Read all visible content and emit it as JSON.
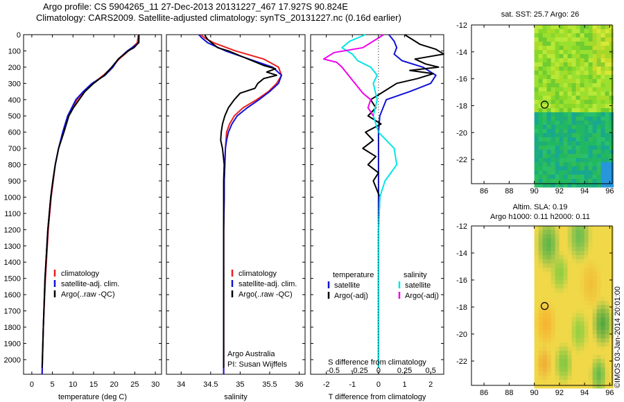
{
  "header": {
    "line1": "Argo profile: CS 5904265_11 27-Dec-2013 20131227_467 17.927S 90.824E",
    "line2": "Climatology: CARS2009. Satellite-adjusted climatology: synTS_20131227.nc (0.16d earlier)"
  },
  "colors": {
    "climatology": "#ee1c1c",
    "satellite": "#1010d8",
    "argo": "#000000",
    "sal_satellite": "#00e5e5",
    "sal_argo": "#ee00ee"
  },
  "depth_axis": {
    "ticks": [
      0,
      100,
      200,
      300,
      400,
      500,
      600,
      700,
      800,
      900,
      1000,
      1100,
      1200,
      1300,
      1400,
      1500,
      1600,
      1700,
      1800,
      1900,
      2000
    ],
    "ylim": [
      0,
      2090
    ],
    "reversed": true
  },
  "chart_data": [
    {
      "type": "line",
      "id": "temperature",
      "xlabel": "temperature (deg C)",
      "xlim": [
        -2,
        31.5
      ],
      "xticks": [
        0,
        5,
        10,
        15,
        20,
        25,
        30
      ],
      "legend": {
        "entries": [
          "climatology",
          "satellite-adj. clim.",
          "Argo(..raw -QC)"
        ]
      },
      "series": [
        {
          "name": "climatology",
          "color": "#ee1c1c",
          "depth": [
            0,
            50,
            100,
            150,
            200,
            250,
            300,
            350,
            400,
            450,
            500,
            600,
            700,
            800,
            900,
            1000,
            1200,
            1500,
            1800,
            2090
          ],
          "values": [
            25.9,
            25.6,
            23.5,
            21.2,
            19.5,
            17.4,
            14.8,
            12.6,
            11.0,
            9.8,
            8.8,
            7.6,
            6.5,
            5.7,
            5.2,
            4.7,
            4.0,
            3.3,
            2.8,
            2.5
          ]
        },
        {
          "name": "satellite-adj. clim.",
          "color": "#1010d8",
          "depth": [
            0,
            50,
            100,
            150,
            200,
            250,
            300,
            350,
            400,
            450,
            500,
            600,
            700,
            800,
            900,
            1000,
            1200,
            1500,
            1800,
            2090
          ],
          "values": [
            26.0,
            26.0,
            23.2,
            21.0,
            19.7,
            17.8,
            14.6,
            12.5,
            10.7,
            9.7,
            8.7,
            7.5,
            6.5,
            5.7,
            5.1,
            4.6,
            3.9,
            3.2,
            2.8,
            2.5
          ]
        },
        {
          "name": "Argo(..raw -QC)",
          "color": "#000000",
          "depth": [
            2,
            20,
            50,
            80,
            100,
            150,
            200,
            250,
            300,
            350,
            400,
            450,
            500,
            600,
            700,
            800,
            900,
            1000,
            1200,
            1500,
            1800,
            2050
          ],
          "values": [
            26.0,
            26.0,
            25.9,
            24.8,
            23.4,
            21.0,
            19.4,
            17.6,
            15.0,
            12.9,
            11.5,
            10.1,
            9.0,
            7.8,
            6.5,
            5.7,
            5.1,
            4.6,
            3.9,
            3.2,
            2.8,
            2.5
          ]
        }
      ]
    },
    {
      "type": "line",
      "id": "salinity",
      "xlabel": "salinity",
      "xlim": [
        33.75,
        36.1
      ],
      "xticks": [
        34,
        34.5,
        35,
        35.5,
        36
      ],
      "legend": {
        "entries": [
          "climatology",
          "satellite-adj. clim.",
          "Argo(..raw -QC)"
        ]
      },
      "annotations": [
        "Argo Australia",
        "PI: Susan Wijffels"
      ],
      "series": [
        {
          "name": "climatology",
          "color": "#ee1c1c",
          "depth": [
            0,
            20,
            50,
            100,
            150,
            200,
            250,
            300,
            350,
            400,
            450,
            500,
            550,
            600,
            650,
            700,
            800,
            900,
            1000,
            1200,
            1500,
            1800,
            2090
          ],
          "values": [
            34.33,
            34.4,
            34.55,
            34.92,
            35.4,
            35.65,
            35.7,
            35.62,
            35.48,
            35.28,
            35.05,
            34.9,
            34.82,
            34.77,
            34.76,
            34.75,
            34.74,
            34.73,
            34.73,
            34.72,
            34.72,
            34.72,
            34.72
          ]
        },
        {
          "name": "satellite-adj. clim.",
          "color": "#1010d8",
          "depth": [
            0,
            20,
            50,
            100,
            150,
            200,
            250,
            300,
            350,
            400,
            450,
            500,
            550,
            600,
            650,
            700,
            800,
            900,
            1000,
            1200,
            1500,
            1800,
            2090
          ],
          "values": [
            34.3,
            34.35,
            34.45,
            34.75,
            35.15,
            35.55,
            35.7,
            35.65,
            35.5,
            35.32,
            35.12,
            34.95,
            34.86,
            34.8,
            34.77,
            34.75,
            34.74,
            34.73,
            34.73,
            34.72,
            34.72,
            34.72,
            34.72
          ]
        },
        {
          "name": "Argo(..raw -QC)",
          "color": "#000000",
          "depth": [
            2,
            30,
            60,
            80,
            100,
            130,
            160,
            190,
            210,
            230,
            250,
            270,
            300,
            330,
            360,
            400,
            450,
            500,
            550,
            600,
            650,
            700,
            800,
            900,
            1000,
            1200,
            1500,
            1800,
            2050
          ],
          "values": [
            34.4,
            34.45,
            34.55,
            34.62,
            34.8,
            35.0,
            35.2,
            35.4,
            35.6,
            35.45,
            35.62,
            35.4,
            35.3,
            35.25,
            35.0,
            34.9,
            34.8,
            34.74,
            34.7,
            34.68,
            34.67,
            34.7,
            34.73,
            34.72,
            34.72,
            34.72,
            34.72,
            34.72,
            34.72
          ]
        }
      ]
    },
    {
      "type": "line",
      "id": "difference",
      "xlabel": "T difference from climatology",
      "xlabel_top": "S difference from climatology",
      "xlim": [
        -2.6,
        2.5
      ],
      "xticks": [
        -2,
        -1,
        0,
        1,
        2
      ],
      "xticks_top": [
        "-0.5",
        "-0.25",
        "0",
        "0.25",
        "0.5"
      ],
      "legend": {
        "groups": [
          "temperature",
          "salinity"
        ],
        "entries": [
          "satellite",
          "Argo(-adj)",
          "satellite",
          "Argo(-adj)"
        ]
      },
      "series": [
        {
          "name": "temperature satellite",
          "color": "#1010d8",
          "depth": [
            0,
            40,
            80,
            120,
            160,
            200,
            250,
            300,
            350,
            400,
            500,
            600,
            800,
            1000,
            1500,
            2050
          ],
          "values": [
            0.4,
            0.6,
            0.7,
            0.6,
            0.9,
            1.7,
            2.2,
            2.0,
            1.2,
            0.3,
            0.05,
            0.0,
            0.0,
            0.0,
            0.0,
            0.0
          ]
        },
        {
          "name": "temperature Argo(-adj)",
          "color": "#000000",
          "depth": [
            0,
            30,
            60,
            90,
            120,
            150,
            180,
            200,
            220,
            240,
            270,
            300,
            350,
            400,
            450,
            500,
            550,
            600,
            650,
            700,
            750,
            800,
            850,
            900,
            1000,
            1200,
            1500,
            2050
          ],
          "values": [
            1.0,
            1.3,
            1.6,
            2.2,
            2.5,
            1.4,
            1.8,
            2.3,
            1.2,
            2.1,
            1.5,
            0.7,
            0.2,
            -0.3,
            -0.1,
            -0.4,
            0.1,
            -0.5,
            -0.2,
            -0.6,
            -0.1,
            -0.4,
            0.0,
            -0.2,
            0.05,
            0.0,
            0.0,
            0.0
          ]
        },
        {
          "name": "salinity satellite",
          "color": "#00e5e5",
          "depth": [
            0,
            40,
            80,
            120,
            160,
            200,
            250,
            300,
            400,
            500,
            600,
            700,
            800,
            900,
            1000,
            1200,
            1500,
            2050
          ],
          "values": [
            -0.5,
            -1.1,
            -1.4,
            -1.0,
            -0.8,
            -0.3,
            -0.05,
            -0.2,
            -0.05,
            -0.2,
            0.0,
            0.6,
            0.7,
            0.25,
            0.05,
            0.0,
            0.0,
            0.0
          ]
        },
        {
          "name": "salinity Argo(-adj)",
          "color": "#ee00ee",
          "depth": [
            0,
            40,
            80,
            110,
            150,
            170,
            200,
            240,
            280,
            320,
            360,
            400,
            450,
            500
          ],
          "values": [
            0.2,
            -0.2,
            -0.6,
            -1.7,
            -2.1,
            -1.6,
            -1.4,
            -1.2,
            -1.0,
            -0.8,
            -0.6,
            -0.3,
            -0.4,
            -0.2
          ]
        }
      ]
    },
    {
      "type": "heatmap",
      "id": "sst_map",
      "title": "sat. SST: 25.7 Argo: 26",
      "xlim": [
        85,
        96.2
      ],
      "ylim": [
        -23.8,
        -12
      ],
      "xticks": [
        86,
        88,
        90,
        92,
        94,
        96
      ],
      "yticks": [
        -12,
        -14,
        -16,
        -18,
        -20,
        -22
      ],
      "data_lon_min": 90,
      "profile_location": {
        "lon": 90.824,
        "lat": -17.927
      },
      "variable": "sea surface temperature"
    },
    {
      "type": "heatmap",
      "id": "sla_map",
      "title_line1": "Altim. SLA: 0.19",
      "title_line2": "Argo h1000: 0.11 h2000: 0.11",
      "xlim": [
        85,
        96.2
      ],
      "ylim": [
        -23.8,
        -12
      ],
      "xticks": [
        86,
        88,
        90,
        92,
        94,
        96
      ],
      "yticks": [
        -12,
        -14,
        -16,
        -18,
        -20,
        -22
      ],
      "data_lon_min": 90,
      "profile_location": {
        "lon": 90.824,
        "lat": -17.927
      },
      "variable": "sea level anomaly"
    }
  ],
  "footer": {
    "stamp": "©IMOS 03-Jan-2014 20:01:00"
  }
}
